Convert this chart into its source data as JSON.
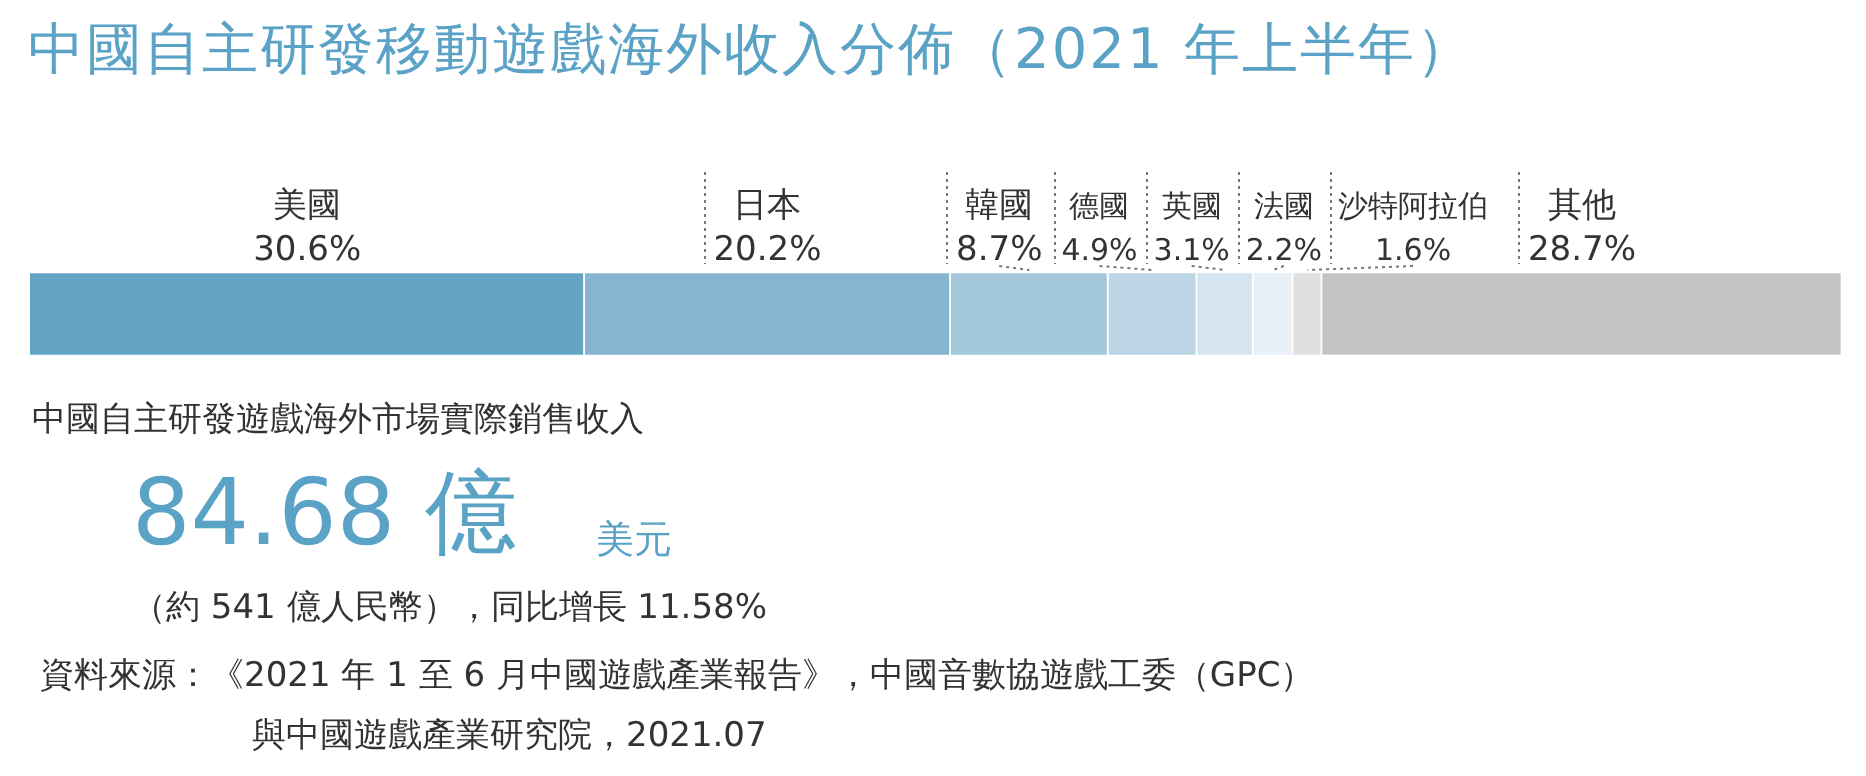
{
  "chart_data": {
    "type": "bar",
    "orientation": "horizontal",
    "stacked": true,
    "title": "中國自主研發移動遊戲海外收入分佈（2021 年上半年）",
    "categories": [
      null
    ],
    "xlim": [
      0,
      100
    ],
    "tick_labels": false,
    "legend": false,
    "series": [
      {
        "name": "美國",
        "color": "#63a4c4",
        "values": [
          30.6
        ],
        "value_labels": [
          "30.6%"
        ]
      },
      {
        "name": "日本",
        "color": "#86b6cf",
        "values": [
          20.2
        ],
        "value_labels": [
          "20.2%"
        ]
      },
      {
        "name": "韓國",
        "color": "#a3c8dc",
        "values": [
          8.7
        ],
        "value_labels": [
          "8.7%"
        ]
      },
      {
        "name": "德國",
        "color": "#bcd6e5",
        "values": [
          4.9
        ],
        "value_labels": [
          "4.9%"
        ]
      },
      {
        "name": "英國",
        "color": "#d4e5ef",
        "values": [
          3.1
        ],
        "value_labels": [
          "3.1%"
        ]
      },
      {
        "name": "法國",
        "color": "#e8f1f7",
        "values": [
          2.2
        ],
        "value_labels": [
          "2.2%"
        ]
      },
      {
        "name": "沙特阿拉伯",
        "color": "#e0e0e0",
        "values": [
          1.6
        ],
        "value_labels": [
          "1.6%"
        ]
      },
      {
        "name": "其他",
        "color": "#c4c4c4",
        "values": [
          28.7
        ],
        "value_labels": [
          "28.7%"
        ]
      }
    ],
    "annotations": [
      "中國自主研發遊戲海外市場實際銷售收入",
      "84.68 億",
      "美元",
      "（約 541 億人民幣），同比增長 11.58%",
      "資料來源：《2021 年 1 至 6 月中國遊戲產業報告》，中國音數協遊戲工委（GPC）",
      "與中國遊戲產業研究院，2021.07"
    ]
  }
}
